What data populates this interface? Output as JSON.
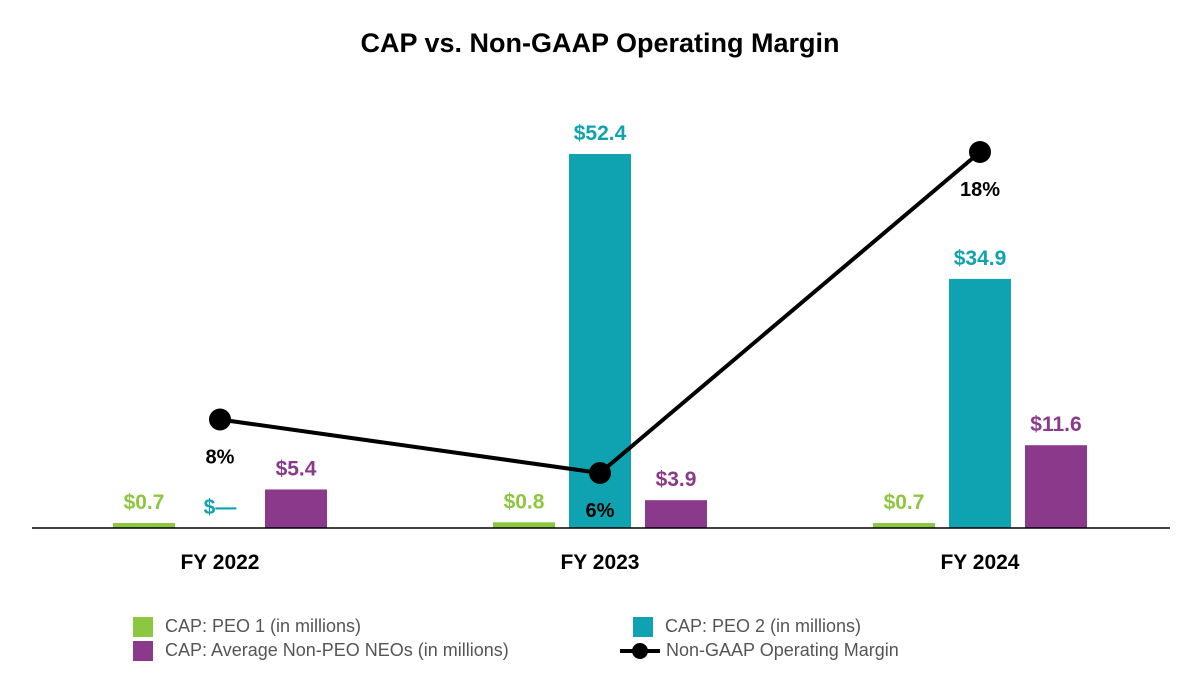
{
  "chart_data": {
    "type": "bar",
    "title": "CAP vs. Non-GAAP Operating Margin",
    "xlabel": "",
    "ylabel": "",
    "categories": [
      "FY 2022",
      "FY 2023",
      "FY 2024"
    ],
    "series": [
      {
        "name": "CAP: PEO 1 (in millions)",
        "type": "bar",
        "color": "#8DC63F",
        "values": [
          0.7,
          0.8,
          0.7
        ],
        "labels": [
          "$0.7",
          "$0.8",
          "$0.7"
        ]
      },
      {
        "name": "CAP: PEO 2 (in millions)",
        "type": "bar",
        "color": "#0FA3B1",
        "values": [
          0,
          52.4,
          34.9
        ],
        "labels": [
          "$—",
          "$52.4",
          "$34.9"
        ]
      },
      {
        "name": "CAP: Average Non-PEO NEOs (in millions)",
        "type": "bar",
        "color": "#8B3A8B",
        "values": [
          5.4,
          3.9,
          11.6
        ],
        "labels": [
          "$5.4",
          "$3.9",
          "$11.6"
        ]
      },
      {
        "name": "Non-GAAP Operating Margin",
        "type": "line",
        "color": "#000000",
        "values": [
          8,
          6,
          18
        ],
        "labels": [
          "8%",
          "6%",
          "18%"
        ],
        "unit": "%"
      }
    ],
    "bar_ylim": [
      0,
      52.4
    ],
    "line_ylim": [
      0,
      18
    ],
    "grid": false,
    "axes_visible": false,
    "legend_position": "bottom"
  },
  "legend": [
    {
      "label": "CAP: PEO 1 (in millions)",
      "symbol": "square",
      "color": "#8DC63F"
    },
    {
      "label": "CAP: PEO 2 (in millions)",
      "symbol": "square",
      "color": "#0FA3B1"
    },
    {
      "label": "CAP: Average Non-PEO NEOs (in millions)",
      "symbol": "square",
      "color": "#8B3A8B"
    },
    {
      "label": "Non-GAAP Operating Margin",
      "symbol": "line-marker",
      "color": "#000000"
    }
  ]
}
